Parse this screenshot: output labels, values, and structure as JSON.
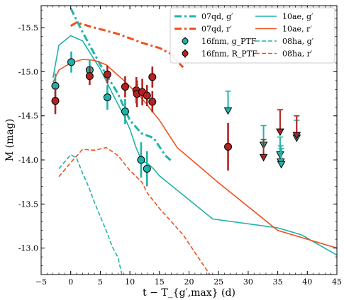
{
  "chart_data": {
    "type": "scatter",
    "xlabel": "t − T_{g′,max} (d)",
    "ylabel": "M (mag)",
    "xlim": [
      -5,
      45
    ],
    "ylim": [
      -12.7,
      -15.75
    ],
    "y_inverted": true,
    "grid": false,
    "legend_position": "top-right",
    "x_ticks": [
      "−5",
      "0",
      "5",
      "10",
      "15",
      "20",
      "25",
      "30",
      "35",
      "40",
      "45"
    ],
    "x_tick_values": [
      -5,
      0,
      5,
      10,
      15,
      20,
      25,
      30,
      35,
      40,
      45
    ],
    "y_ticks": [
      "-15.5",
      "-15.0",
      "-14.5",
      "-14.0",
      "-13.5",
      "-13.0"
    ],
    "y_tick_values": [
      -15.5,
      -15.0,
      -14.5,
      -14.0,
      -13.5,
      -13.0
    ],
    "lines": [
      {
        "name": "07qd, g′",
        "color": "#20b2aa",
        "style": "dashdot",
        "width": 3,
        "points": [
          [
            0,
            -15.72
          ],
          [
            2,
            -15.45
          ],
          [
            5,
            -15.08
          ],
          [
            8,
            -14.75
          ],
          [
            10,
            -14.45
          ],
          [
            12,
            -14.3
          ],
          [
            14,
            -14.25
          ],
          [
            16,
            -14.05
          ],
          [
            17,
            -13.99
          ]
        ]
      },
      {
        "name": "07qd, r′",
        "color": "#f0521e",
        "style": "dashdot",
        "width": 3,
        "points": [
          [
            0,
            -15.52
          ],
          [
            1,
            -15.56
          ],
          [
            3,
            -15.52
          ],
          [
            8,
            -15.43
          ],
          [
            12,
            -15.33
          ],
          [
            15,
            -15.27
          ],
          [
            17,
            -15.2
          ],
          [
            18,
            -15.12
          ],
          [
            19,
            -15.05
          ]
        ]
      },
      {
        "name": "10ae, g′",
        "color": "#20b2aa",
        "style": "solid",
        "width": 1.6,
        "points": [
          [
            -3,
            -14.93
          ],
          [
            -2,
            -15.3
          ],
          [
            0,
            -15.41
          ],
          [
            2,
            -15.35
          ],
          [
            5,
            -15.03
          ],
          [
            7,
            -14.76
          ],
          [
            9,
            -14.5
          ],
          [
            10,
            -14.35
          ],
          [
            11,
            -14.15
          ],
          [
            12,
            -13.99
          ],
          [
            13,
            -13.96
          ],
          [
            14,
            -13.9
          ],
          [
            15,
            -13.82
          ],
          [
            24,
            -13.33
          ],
          [
            35,
            -13.23
          ],
          [
            39,
            -13.15
          ],
          [
            45,
            -12.92
          ]
        ]
      },
      {
        "name": "10ae, r′",
        "color": "#f0521e",
        "style": "solid",
        "width": 1.6,
        "points": [
          [
            -3,
            -14.88
          ],
          [
            -2,
            -15.02
          ],
          [
            0,
            -15.1
          ],
          [
            2,
            -15.14
          ],
          [
            4,
            -15.13
          ],
          [
            6,
            -15.08
          ],
          [
            9,
            -14.9
          ],
          [
            12,
            -14.7
          ],
          [
            15,
            -14.45
          ],
          [
            18,
            -14.14
          ],
          [
            25,
            -13.74
          ],
          [
            35,
            -13.2
          ],
          [
            45,
            -13.0
          ]
        ]
      },
      {
        "name": "08ha, g′",
        "color": "#20b2aa",
        "style": "dashed",
        "width": 1.6,
        "points": [
          [
            -2,
            -13.9
          ],
          [
            0,
            -14.06
          ],
          [
            1,
            -14.02
          ],
          [
            2,
            -13.85
          ],
          [
            3,
            -13.7
          ],
          [
            4,
            -13.52
          ],
          [
            5,
            -13.36
          ],
          [
            6,
            -13.2
          ],
          [
            7,
            -13.02
          ],
          [
            8,
            -12.89
          ],
          [
            9,
            -12.6
          ]
        ]
      },
      {
        "name": "08ha, r′",
        "color": "#f0521e",
        "style": "dashed",
        "width": 1.6,
        "points": [
          [
            -2,
            -13.81
          ],
          [
            0,
            -13.97
          ],
          [
            2,
            -14.12
          ],
          [
            4,
            -14.11
          ],
          [
            6,
            -14.14
          ],
          [
            8,
            -14.05
          ],
          [
            10,
            -13.88
          ],
          [
            12,
            -13.75
          ],
          [
            13,
            -13.62
          ],
          [
            15,
            -13.45
          ],
          [
            17,
            -13.3
          ],
          [
            19,
            -13.15
          ],
          [
            21,
            -12.95
          ],
          [
            22,
            -12.85
          ],
          [
            24,
            -12.65
          ]
        ]
      }
    ],
    "points": [
      {
        "name": "16fnm, g_PTF",
        "color": "#20b2aa",
        "data": [
          [
            -2.6,
            -14.84,
            0.14
          ],
          [
            0.1,
            -15.11,
            0.12
          ],
          [
            3.2,
            -15.02,
            0.12
          ],
          [
            6.2,
            -14.71,
            0.14
          ],
          [
            9.2,
            -14.55,
            0.14
          ],
          [
            11.9,
            -14.0,
            0.2
          ],
          [
            12.9,
            -13.9,
            0.2
          ]
        ]
      },
      {
        "name": "16fnm, R_PTF",
        "color": "#b22222",
        "data": [
          [
            -2.6,
            -14.67,
            0.15
          ],
          [
            3.2,
            -14.95,
            0.1
          ],
          [
            6.2,
            -14.97,
            0.1
          ],
          [
            9.2,
            -14.83,
            0.12
          ],
          [
            11.1,
            -14.79,
            0.15
          ],
          [
            11.2,
            -14.75,
            0.15
          ],
          [
            12.1,
            -14.77,
            0.15
          ],
          [
            12.9,
            -14.73,
            0.12
          ],
          [
            13.8,
            -14.66,
            0.12
          ],
          [
            13.8,
            -14.94,
            0.12
          ]
        ]
      }
    ],
    "upper_limits": [
      {
        "series": "g′",
        "color": "#20b2aa",
        "data": [
          [
            26.6,
            -14.56,
            0.22
          ],
          [
            32.6,
            -14.17,
            0.22
          ],
          [
            35.4,
            -14.06,
            0.2
          ],
          [
            35.5,
            -13.98,
            0.18
          ],
          [
            35.6,
            -13.95,
            0.18
          ],
          [
            38.2,
            -14.25,
            0.2
          ]
        ]
      },
      {
        "series": "r′",
        "color": "#b22222",
        "data": [
          [
            32.6,
            -14.03,
            0.2
          ],
          [
            35.4,
            -14.32,
            0.25
          ],
          [
            38.2,
            -14.28,
            0.22
          ]
        ]
      }
    ],
    "extra_points": [
      {
        "name": "r′",
        "color": "#b22222",
        "data": [
          [
            26.6,
            -14.15,
            0.27
          ]
        ]
      }
    ],
    "legend": {
      "col1": [
        {
          "label": "07qd, g′",
          "kind": "line",
          "color": "#20b2aa",
          "style": "dashdot"
        },
        {
          "label": "07qd, r′",
          "kind": "line",
          "color": "#f0521e",
          "style": "dashdot"
        },
        {
          "label": "16fnm, g_PTF",
          "kind": "marker",
          "color": "#20b2aa"
        },
        {
          "label": "16fnm, R_PTF",
          "kind": "marker",
          "color": "#b22222"
        }
      ],
      "col2": [
        {
          "label": "10ae, g′",
          "kind": "line",
          "color": "#20b2aa",
          "style": "solid"
        },
        {
          "label": "10ae, r′",
          "kind": "line",
          "color": "#f0521e",
          "style": "solid"
        },
        {
          "label": "08ha, g′",
          "kind": "line",
          "color": "#20b2aa",
          "style": "dashed"
        },
        {
          "label": "08ha, r′",
          "kind": "line",
          "color": "#f0521e",
          "style": "dashed"
        }
      ]
    }
  }
}
